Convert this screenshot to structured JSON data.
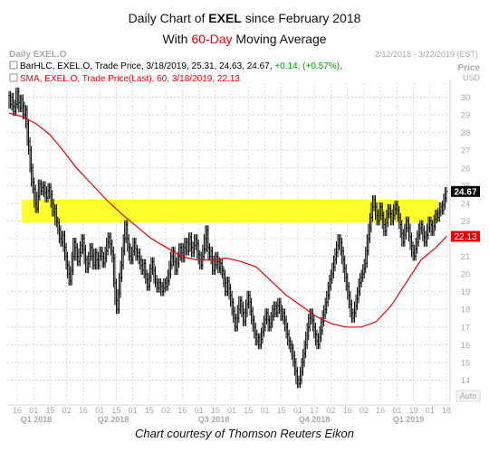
{
  "header": {
    "title_pre": "Daily Chart of ",
    "title_ticker": "EXEL",
    "title_post": " since February 2018",
    "subtitle_pre": "With ",
    "subtitle_highlight": "60-Day",
    "subtitle_post": " Moving Average"
  },
  "chart_meta": {
    "chart_name": "Daily EXEL.O",
    "date_range": "2/12/2018 - 3/22/2019 (EST)",
    "price_label": "Price",
    "currency": "USD",
    "auto_label": "Auto",
    "legend_bar": {
      "text": "BarHLC, EXEL.O, Trade Price, 3/18/2019, 25.31, 24.63, 24.67,",
      "change": "+0.14, (+0.57%),",
      "color": "#000000",
      "change_color": "#009900"
    },
    "legend_sma": {
      "text": "SMA, EXEL.O, Trade Price(Last), 60, 3/18/2019, 22.13",
      "color": "#e8000b"
    },
    "last_price_label": "24.67",
    "last_sma_label": "22.13"
  },
  "chart_data": {
    "type": "bar",
    "title": "Daily Chart of EXEL since February 2018",
    "subtitle": "With 60-Day Moving Average",
    "ylim": [
      13,
      31
    ],
    "y_ticks": [
      14,
      15,
      16,
      17,
      18,
      19,
      20,
      21,
      22,
      23,
      24,
      25,
      26,
      27,
      28,
      29,
      30
    ],
    "x_tick_labels": [
      "16",
      "01",
      "15",
      "02",
      "16",
      "01",
      "15",
      "01",
      "15",
      "02",
      "16",
      "01",
      "15",
      "01",
      "15",
      "01",
      "15",
      "01",
      "17",
      "02",
      "16",
      "02",
      "16",
      "01",
      "19",
      "01",
      "18"
    ],
    "quarter_labels": [
      "Q1 2018",
      "Q2 2018",
      "Q3 2018",
      "Q4 2018",
      "Q1 2019"
    ],
    "highlight_band": [
      22.9,
      24.2
    ],
    "series": [
      {
        "name": "BarHLC, EXEL.O, Trade Price",
        "color": "#000000",
        "close": [
          30.1,
          29.6,
          30.0,
          29.5,
          29.2,
          29.6,
          30.3,
          29.7,
          29.4,
          29.9,
          29.5,
          29.0,
          29.3,
          28.5,
          27.5,
          27.0,
          26.0,
          25.2,
          24.8,
          24.0,
          23.7,
          24.4,
          25.1,
          24.7,
          24.9,
          25.0,
          24.6,
          24.3,
          24.7,
          24.9,
          24.5,
          24.0,
          23.5,
          23.7,
          23.0,
          22.9,
          22.5,
          22.0,
          21.8,
          22.2,
          21.5,
          21.0,
          20.5,
          20.0,
          19.6,
          20.2,
          21.0,
          21.8,
          21.5,
          21.0,
          20.7,
          21.2,
          21.6,
          22.0,
          21.4,
          20.8,
          20.3,
          20.6,
          21.0,
          21.5,
          21.0,
          20.5,
          21.2,
          20.8,
          20.5,
          21.0,
          21.3,
          21.0,
          20.6,
          20.9,
          21.3,
          21.8,
          22.1,
          21.7,
          21.3,
          20.9,
          19.5,
          18.5,
          18.0,
          18.9,
          19.8,
          20.5,
          21.3,
          22.0,
          22.8,
          22.0,
          21.5,
          21.0,
          20.8,
          21.3,
          21.8,
          21.4,
          21.0,
          21.2,
          20.8,
          20.5,
          20.2,
          20.6,
          20.0,
          19.7,
          19.3,
          19.8,
          20.3,
          20.7,
          20.2,
          19.7,
          19.5,
          19.2,
          19.5,
          19.3,
          19.0,
          19.2,
          19.5,
          19.3,
          19.6,
          20.0,
          20.5,
          21.0,
          21.3,
          20.7,
          20.2,
          20.6,
          21.0,
          21.5,
          21.2,
          20.9,
          21.5,
          21.8,
          21.3,
          21.7,
          22.1,
          21.5,
          21.2,
          21.6,
          22.0,
          21.7,
          21.1,
          20.8,
          20.5,
          21.0,
          21.4,
          22.0,
          22.5,
          21.5,
          21.0,
          21.3,
          20.8,
          20.2,
          20.5,
          21.0,
          20.7,
          20.3,
          20.6,
          20.2,
          20.0,
          19.5,
          19.0,
          19.6,
          19.2,
          18.8,
          18.4,
          17.9,
          17.5,
          17.0,
          17.5,
          18.0,
          18.5,
          18.2,
          17.8,
          17.3,
          17.8,
          18.3,
          18.8,
          18.4,
          17.9,
          17.4,
          17.0,
          16.6,
          16.2,
          16.4,
          16.0,
          16.3,
          16.7,
          17.0,
          17.4,
          17.8,
          17.4,
          17.0,
          17.2,
          17.6,
          18.0,
          18.2,
          17.8,
          18.2,
          18.4,
          18.0,
          17.6,
          17.8,
          17.4,
          17.0,
          16.6,
          16.2,
          16.0,
          15.8,
          15.4,
          15.0,
          14.5,
          14.0,
          13.8,
          14.0,
          14.5,
          15.0,
          15.5,
          16.0,
          16.5,
          17.0,
          17.5,
          17.8,
          17.4,
          17.0,
          16.6,
          16.2,
          16.0,
          16.4,
          16.8,
          17.3,
          17.7,
          18.0,
          18.4,
          18.8,
          19.3,
          19.7,
          20.0,
          20.4,
          20.8,
          21.2,
          21.6,
          22.0,
          21.8,
          21.3,
          20.8,
          20.3,
          19.8,
          19.3,
          18.8,
          18.3,
          17.8,
          17.5,
          17.8,
          18.2,
          18.6,
          19.0,
          19.5,
          19.8,
          20.0,
          20.3,
          20.6,
          21.3,
          22.0,
          22.6,
          23.2,
          23.8,
          24.2,
          23.8,
          23.3,
          23.0,
          23.4,
          23.8,
          23.3,
          22.8,
          22.4,
          22.9,
          23.4,
          23.7,
          23.4,
          23.0,
          23.3,
          23.7,
          23.9,
          23.6,
          23.2,
          22.8,
          22.3,
          21.8,
          22.2,
          22.6,
          23.0,
          22.6,
          22.1,
          21.6,
          21.2,
          21.0,
          21.4,
          21.8,
          22.2,
          22.6,
          22.8,
          22.5,
          22.1,
          21.8,
          22.2,
          22.6,
          23.0,
          22.8,
          22.4,
          22.7,
          23.1,
          23.4,
          23.2,
          23.5,
          23.8,
          23.6,
          23.9,
          24.3,
          24.67
        ]
      },
      {
        "name": "SMA, EXEL.O, Trade Price(Last), 60",
        "color": "#e8000b",
        "x": [
          0,
          9,
          18,
          27,
          36,
          45,
          55,
          65,
          75,
          85,
          95,
          105,
          115,
          125,
          135,
          145,
          155,
          165,
          175,
          185,
          195,
          205,
          215,
          225,
          235,
          245,
          255,
          265,
          275,
          285,
          292
        ],
        "values": [
          29.1,
          28.9,
          28.5,
          27.9,
          27.0,
          26.0,
          25.1,
          24.2,
          23.4,
          22.7,
          22.0,
          21.5,
          21.0,
          20.8,
          20.8,
          20.9,
          20.7,
          20.4,
          19.6,
          18.8,
          18.2,
          17.6,
          17.2,
          17.0,
          17.0,
          17.3,
          18.2,
          19.5,
          20.8,
          21.5,
          22.13
        ]
      }
    ]
  },
  "caption": "Chart courtesy of Thomson Reuters Eikon"
}
